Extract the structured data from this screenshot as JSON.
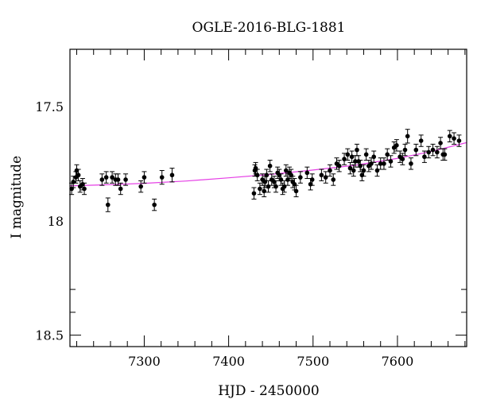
{
  "chart_data": {
    "type": "scatter",
    "title": "OGLE-2016-BLG-1881",
    "xlabel": "HJD - 2450000",
    "ylabel": "I magnitude",
    "xlim": [
      7212,
      7682
    ],
    "ylim": [
      18.55,
      17.25
    ],
    "y_inverted": true,
    "grid": false,
    "x_major_ticks": [
      7300,
      7400,
      7500,
      7600
    ],
    "x_tick_labels": [
      "7300",
      "7400",
      "7500",
      "7600"
    ],
    "y_major_ticks": [
      17.5,
      18,
      18.5
    ],
    "y_tick_labels": [
      "17.5",
      "18",
      "18.5"
    ],
    "model_color": "#e53ee5",
    "point_color": "#000000",
    "model_curve": {
      "x": [
        7212,
        7260,
        7300,
        7350,
        7400,
        7450,
        7500,
        7550,
        7600,
        7640,
        7682
      ],
      "y": [
        17.847,
        17.842,
        17.836,
        17.826,
        17.812,
        17.797,
        17.778,
        17.757,
        17.727,
        17.697,
        17.658
      ]
    },
    "series": [
      {
        "x": [
          7214,
          7216,
          7219,
          7220,
          7222,
          7224,
          7227,
          7229,
          7250,
          7255,
          7257,
          7262,
          7266,
          7269,
          7272,
          7278,
          7296,
          7300,
          7312,
          7321,
          7333,
          7430,
          7431,
          7432,
          7434,
          7437,
          7440,
          7442,
          7443,
          7445,
          7447,
          7449,
          7451,
          7454,
          7456,
          7458,
          7460,
          7462,
          7464,
          7466,
          7468,
          7470,
          7472,
          7474,
          7476,
          7478,
          7480,
          7485,
          7493,
          7497,
          7499,
          7510,
          7515,
          7520,
          7524,
          7528,
          7531,
          7537,
          7541,
          7544,
          7546,
          7548,
          7550,
          7552,
          7554,
          7556,
          7558,
          7560,
          7563,
          7566,
          7569,
          7572,
          7576,
          7580,
          7584,
          7588,
          7592,
          7596,
          7599,
          7603,
          7606,
          7609,
          7612,
          7616,
          7622,
          7628,
          7632,
          7637,
          7642,
          7647,
          7651,
          7654,
          7656,
          7662,
          7667,
          7673
        ],
        "y": [
          17.86,
          17.83,
          17.81,
          17.78,
          17.8,
          17.85,
          17.84,
          17.86,
          17.82,
          17.81,
          17.93,
          17.81,
          17.82,
          17.82,
          17.86,
          17.82,
          17.85,
          17.81,
          17.93,
          17.81,
          17.8,
          17.88,
          17.78,
          17.77,
          17.8,
          17.86,
          17.82,
          17.87,
          17.83,
          17.8,
          17.85,
          17.76,
          17.82,
          17.83,
          17.85,
          17.79,
          17.8,
          17.82,
          17.86,
          17.85,
          17.78,
          17.82,
          17.79,
          17.8,
          17.83,
          17.84,
          17.87,
          17.81,
          17.79,
          17.84,
          17.82,
          17.8,
          17.81,
          17.78,
          17.82,
          17.75,
          17.76,
          17.73,
          17.71,
          17.77,
          17.72,
          17.78,
          17.74,
          17.69,
          17.74,
          17.76,
          17.8,
          17.78,
          17.71,
          17.76,
          17.75,
          17.72,
          17.78,
          17.75,
          17.75,
          17.71,
          17.74,
          17.68,
          17.67,
          17.72,
          17.73,
          17.69,
          17.63,
          17.75,
          17.69,
          17.65,
          17.72,
          17.7,
          17.69,
          17.7,
          17.66,
          17.71,
          17.71,
          17.63,
          17.64,
          17.65
        ],
        "err": [
          0.025,
          0.025,
          0.025,
          0.025,
          0.025,
          0.025,
          0.025,
          0.025,
          0.025,
          0.025,
          0.03,
          0.025,
          0.025,
          0.025,
          0.025,
          0.025,
          0.025,
          0.025,
          0.025,
          0.03,
          0.03,
          0.025,
          0.025,
          0.025,
          0.025,
          0.025,
          0.025,
          0.025,
          0.025,
          0.025,
          0.025,
          0.025,
          0.025,
          0.025,
          0.025,
          0.025,
          0.025,
          0.025,
          0.025,
          0.025,
          0.025,
          0.025,
          0.025,
          0.025,
          0.025,
          0.025,
          0.025,
          0.025,
          0.025,
          0.025,
          0.025,
          0.025,
          0.025,
          0.025,
          0.025,
          0.025,
          0.025,
          0.025,
          0.025,
          0.025,
          0.025,
          0.025,
          0.025,
          0.025,
          0.025,
          0.025,
          0.025,
          0.025,
          0.025,
          0.025,
          0.025,
          0.025,
          0.025,
          0.025,
          0.025,
          0.025,
          0.025,
          0.025,
          0.025,
          0.025,
          0.025,
          0.025,
          0.03,
          0.025,
          0.025,
          0.025,
          0.025,
          0.025,
          0.025,
          0.025,
          0.025,
          0.025,
          0.025,
          0.025,
          0.025,
          0.025
        ]
      }
    ]
  }
}
